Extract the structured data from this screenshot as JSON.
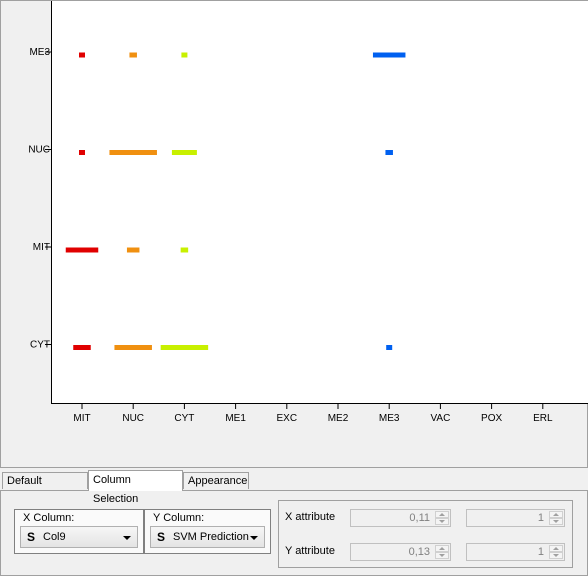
{
  "chart_data": {
    "type": "scatter",
    "x_categories": [
      "MIT",
      "NUC",
      "CYT",
      "ME1",
      "EXC",
      "ME2",
      "ME3",
      "VAC",
      "POX",
      "ERL"
    ],
    "y_categories": [
      "CYT",
      "MIT",
      "NUC",
      "ME3"
    ],
    "series": [
      {
        "color": "#e00000",
        "points": [
          {
            "x": "MIT",
            "y": "ME3",
            "spread": 0.1
          },
          {
            "x": "MIT",
            "y": "NUC",
            "spread": 0.1
          },
          {
            "x": "MIT",
            "y": "MIT",
            "spread": 0.65
          },
          {
            "x": "MIT",
            "y": "CYT",
            "spread": 0.35
          }
        ]
      },
      {
        "color": "#f09010",
        "points": [
          {
            "x": "NUC",
            "y": "ME3",
            "spread": 0.15
          },
          {
            "x": "NUC",
            "y": "NUC",
            "spread": 0.95
          },
          {
            "x": "NUC",
            "y": "MIT",
            "spread": 0.25
          },
          {
            "x": "NUC",
            "y": "CYT",
            "spread": 0.75
          }
        ]
      },
      {
        "color": "#c8f000",
        "points": [
          {
            "x": "CYT",
            "y": "ME3",
            "spread": 0.1
          },
          {
            "x": "CYT",
            "y": "NUC",
            "spread": 0.5
          },
          {
            "x": "CYT",
            "y": "MIT",
            "spread": 0.15
          },
          {
            "x": "CYT",
            "y": "CYT",
            "spread": 0.95
          }
        ]
      },
      {
        "color": "#0060f0",
        "points": [
          {
            "x": "ME3",
            "y": "ME3",
            "spread": 0.65
          },
          {
            "x": "ME3",
            "y": "NUC",
            "spread": 0.15
          },
          {
            "x": "ME3",
            "y": "CYT",
            "spread": 0.1
          }
        ]
      }
    ]
  },
  "tabs": [
    "Default Settings",
    "Column Selection",
    "Appearance"
  ],
  "active_tab": "Column Selection",
  "x_column": {
    "label": "X Column:",
    "type_icon": "S",
    "value": "Col9"
  },
  "y_column": {
    "label": "Y Column:",
    "type_icon": "S",
    "value": "SVM Prediction"
  },
  "x_attribute": {
    "label": "X attribute",
    "value": "0,11",
    "value2": "1"
  },
  "y_attribute": {
    "label": "Y attribute",
    "value": "0,13",
    "value2": "1"
  }
}
